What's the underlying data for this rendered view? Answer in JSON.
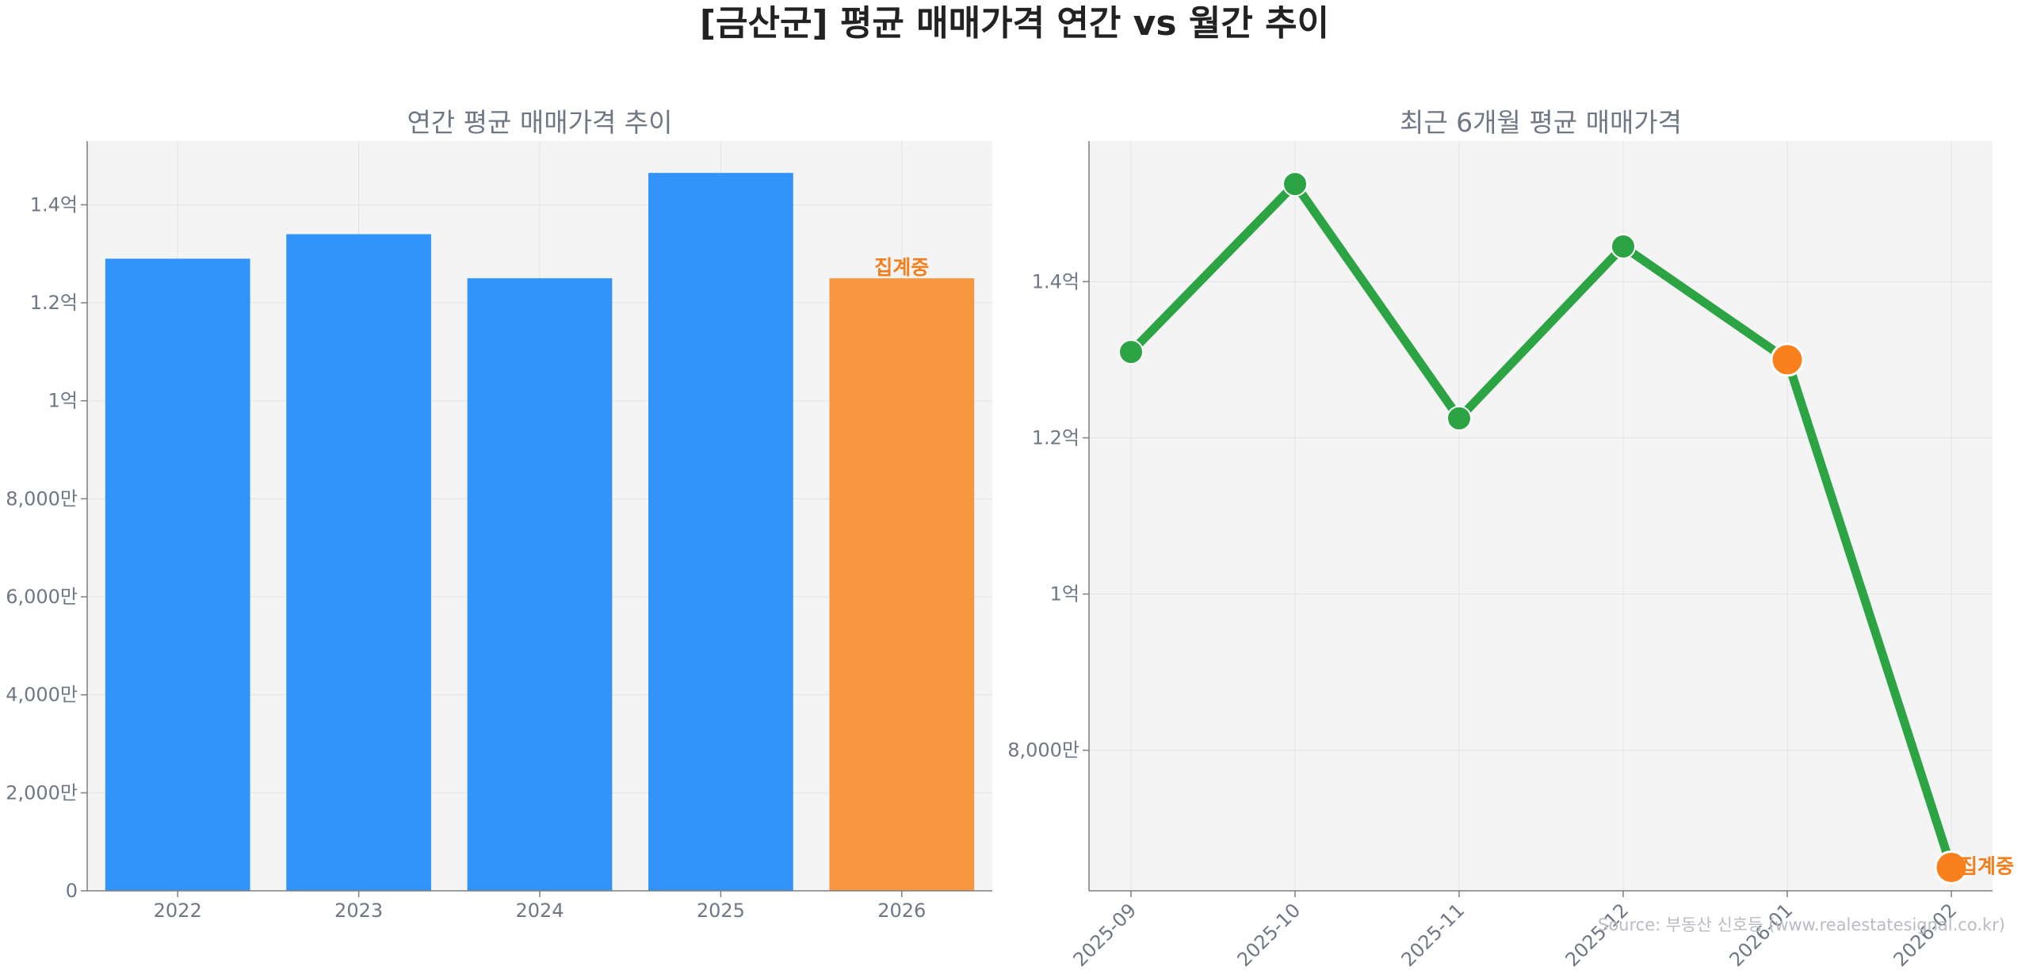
{
  "figure": {
    "title": "[금산군] 평균 매매가격 연간 vs 월간 추이",
    "source": "Source: 부동산 신호등 (www.realestatesignal.co.kr)"
  },
  "colors": {
    "bar": "#3293fb",
    "bar_pending": "#f99741",
    "line": "#2ca444",
    "marker_pending": "#fa7f1d",
    "annotation": "#f47e1b",
    "panel_bg": "#f4f4f4",
    "grid": "#e3e3e3",
    "axis": "#7f7f7f",
    "tick_text": "#707784"
  },
  "chart_data": [
    {
      "type": "bar",
      "title": "연간 평균 매매가격 추이",
      "categories": [
        "2022",
        "2023",
        "2024",
        "2025",
        "2026"
      ],
      "values": [
        129000000,
        134000000,
        125000000,
        146500000,
        125000000
      ],
      "pending_index": 4,
      "annotation": "집계중",
      "ylim": [
        0,
        153000000
      ],
      "yticks": [
        0,
        20000000,
        40000000,
        60000000,
        80000000,
        100000000,
        120000000,
        140000000
      ],
      "yticklabels": [
        "0",
        "2,000만",
        "4,000만",
        "6,000만",
        "8,000만",
        "1억",
        "1.2억",
        "1.4억"
      ],
      "xlabel": "",
      "ylabel": "",
      "grid": true
    },
    {
      "type": "line",
      "title": "최근 6개월 평균 매매가격",
      "categories": [
        "2025-09",
        "2025-10",
        "2025-11",
        "2025-12",
        "2026-01",
        "2026-02"
      ],
      "values": [
        131000000,
        152500000,
        122500000,
        144500000,
        130000000,
        65000000
      ],
      "pending_indices": [
        4,
        5
      ],
      "annotation": "집계중",
      "ylim": [
        62000000,
        158000000
      ],
      "yticks": [
        80000000,
        100000000,
        120000000,
        140000000
      ],
      "yticklabels": [
        "8,000만",
        "1억",
        "1.2억",
        "1.4억"
      ],
      "xlabel": "",
      "ylabel": "",
      "grid": true
    }
  ]
}
